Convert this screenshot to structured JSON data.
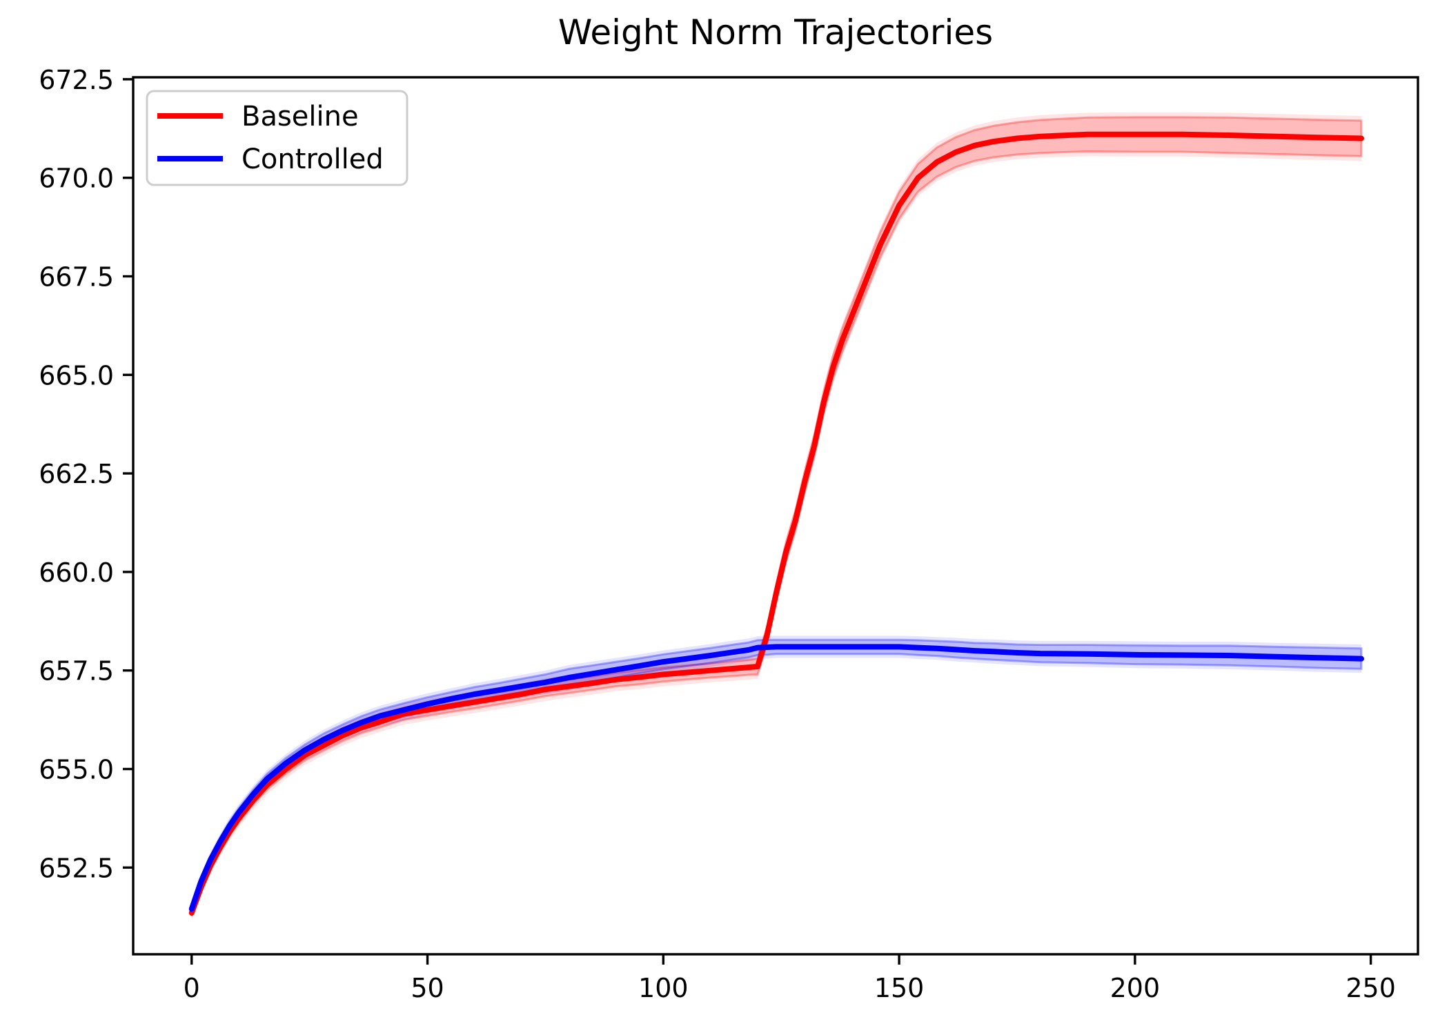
{
  "title": "Weight Norm Trajectories",
  "legend": {
    "items": [
      {
        "label": "Baseline",
        "color": "#ff0000"
      },
      {
        "label": "Controlled",
        "color": "#0000ff"
      }
    ]
  },
  "chart_data": {
    "type": "line",
    "title": "Weight Norm Trajectories",
    "xlabel": "",
    "ylabel": "",
    "xlim": [
      -12.4,
      260.0
    ],
    "ylim": [
      650.3,
      672.55
    ],
    "x_ticks": [
      0,
      50,
      100,
      150,
      200,
      250
    ],
    "y_ticks": [
      652.5,
      655.0,
      657.5,
      660.0,
      662.5,
      665.0,
      667.5,
      670.0,
      672.5
    ],
    "grid": false,
    "legend_position": "upper left",
    "x": [
      0,
      2,
      4,
      6,
      8,
      10,
      13,
      16,
      20,
      24,
      28,
      32,
      36,
      40,
      45,
      50,
      55,
      60,
      65,
      70,
      75,
      80,
      85,
      90,
      95,
      100,
      105,
      110,
      115,
      118,
      120,
      122,
      124,
      126,
      128,
      130,
      132,
      134,
      136,
      138,
      140,
      143,
      146,
      150,
      154,
      158,
      162,
      166,
      170,
      175,
      180,
      190,
      200,
      210,
      220,
      230,
      240,
      248
    ],
    "series": [
      {
        "name": "Baseline",
        "color": "#ff0000",
        "line_width": 8,
        "values": [
          651.35,
          652.0,
          652.55,
          653.0,
          653.4,
          653.75,
          654.2,
          654.6,
          655.0,
          655.35,
          655.6,
          655.85,
          656.05,
          656.2,
          656.4,
          656.5,
          656.6,
          656.7,
          656.8,
          656.9,
          657.02,
          657.1,
          657.18,
          657.27,
          657.33,
          657.4,
          657.45,
          657.5,
          657.55,
          657.58,
          657.6,
          658.4,
          659.5,
          660.5,
          661.3,
          662.3,
          663.2,
          664.3,
          665.2,
          665.9,
          666.5,
          667.4,
          668.3,
          669.3,
          670.0,
          670.4,
          670.65,
          670.82,
          670.92,
          671.0,
          671.05,
          671.1,
          671.1,
          671.1,
          671.08,
          671.05,
          671.02,
          671.0
        ],
        "band_halfwidth": [
          0.07,
          0.08,
          0.09,
          0.1,
          0.1,
          0.11,
          0.11,
          0.12,
          0.12,
          0.13,
          0.13,
          0.14,
          0.14,
          0.14,
          0.15,
          0.15,
          0.15,
          0.16,
          0.16,
          0.16,
          0.17,
          0.17,
          0.17,
          0.17,
          0.18,
          0.18,
          0.18,
          0.18,
          0.19,
          0.19,
          0.2,
          0.21,
          0.22,
          0.24,
          0.25,
          0.26,
          0.27,
          0.28,
          0.29,
          0.3,
          0.3,
          0.31,
          0.32,
          0.34,
          0.35,
          0.37,
          0.38,
          0.39,
          0.4,
          0.41,
          0.42,
          0.43,
          0.44,
          0.44,
          0.45,
          0.45,
          0.45,
          0.45
        ],
        "band_outer_pad": 0.12,
        "band_inner_alpha": 0.18,
        "band_outer_alpha": 0.1,
        "band_edge_alpha": 0.3
      },
      {
        "name": "Controlled",
        "color": "#0000ff",
        "line_width": 8,
        "values": [
          651.45,
          652.15,
          652.7,
          653.15,
          653.55,
          653.9,
          654.35,
          654.75,
          655.15,
          655.48,
          655.75,
          655.98,
          656.18,
          656.35,
          656.5,
          656.65,
          656.78,
          656.9,
          657.0,
          657.1,
          657.2,
          657.32,
          657.42,
          657.52,
          657.62,
          657.72,
          657.8,
          657.88,
          657.97,
          658.02,
          658.08,
          658.09,
          658.1,
          658.1,
          658.1,
          658.1,
          658.1,
          658.1,
          658.1,
          658.1,
          658.1,
          658.1,
          658.1,
          658.1,
          658.08,
          658.06,
          658.03,
          658.0,
          657.98,
          657.95,
          657.93,
          657.92,
          657.9,
          657.89,
          657.88,
          657.85,
          657.82,
          657.8
        ],
        "band_halfwidth": [
          0.07,
          0.08,
          0.09,
          0.1,
          0.11,
          0.11,
          0.12,
          0.13,
          0.13,
          0.14,
          0.15,
          0.15,
          0.16,
          0.16,
          0.17,
          0.17,
          0.17,
          0.18,
          0.18,
          0.19,
          0.2,
          0.22,
          0.21,
          0.2,
          0.19,
          0.19,
          0.19,
          0.19,
          0.19,
          0.19,
          0.19,
          0.19,
          0.18,
          0.18,
          0.18,
          0.18,
          0.18,
          0.18,
          0.18,
          0.18,
          0.18,
          0.18,
          0.18,
          0.18,
          0.19,
          0.19,
          0.2,
          0.2,
          0.21,
          0.21,
          0.22,
          0.23,
          0.24,
          0.24,
          0.25,
          0.25,
          0.26,
          0.26
        ],
        "band_outer_pad": 0.1,
        "band_inner_alpha": 0.18,
        "band_outer_alpha": 0.1,
        "band_edge_alpha": 0.3
      }
    ]
  },
  "axes": {
    "spine_color": "#000000",
    "tick_color": "#000000"
  }
}
